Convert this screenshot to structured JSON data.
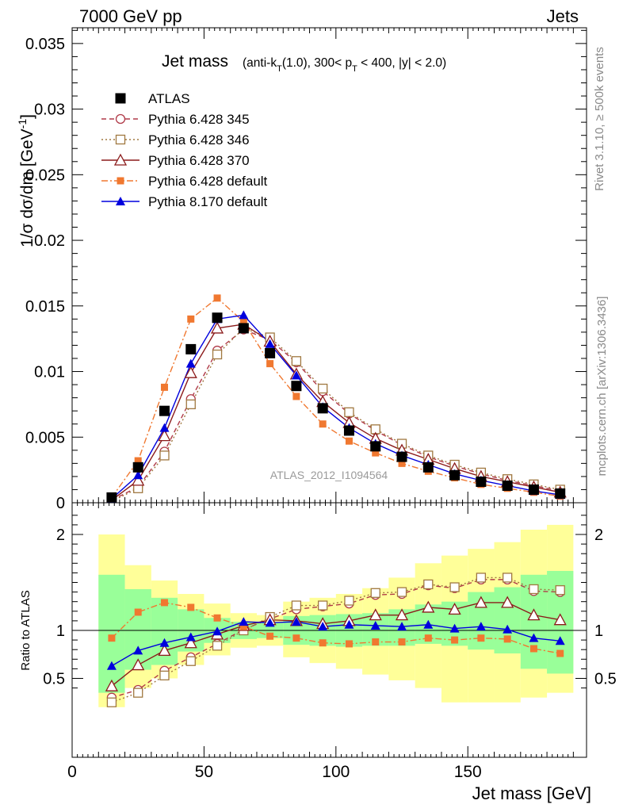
{
  "header": {
    "left": "7000 GeV pp",
    "right": "Jets"
  },
  "side_labels": {
    "rivet": "Rivet 3.1.10, ≥ 500k events",
    "mcplots": "mcplots.cern.ch [arXiv:1306.3436]"
  },
  "watermark": "ATLAS_2012_I1094564",
  "chart_data": {
    "type": "line",
    "title": "Jet mass",
    "title_detail": "(anti-k_T(1.0), 300< p_T < 400, |y| < 2.0)",
    "xlabel": "Jet mass [GeV]",
    "ylabel": "1/σ dσ/dm [GeV^-1]",
    "ratio_ylabel": "Ratio to ATLAS",
    "xlim": [
      0,
      195
    ],
    "ylim": [
      0,
      0.0362
    ],
    "ratio_ylim": [
      0.35,
      2.25
    ],
    "x_ticks": [
      "0",
      "50",
      "100",
      "150"
    ],
    "y_ticks": [
      "0",
      "0.005",
      "0.01",
      "0.015",
      "0.02",
      "0.025",
      "0.03",
      "0.035"
    ],
    "ratio_y_ticks": [
      "0.5",
      "1",
      "2"
    ],
    "legend_position": "top-left",
    "x": [
      15,
      25,
      35,
      45,
      55,
      65,
      75,
      85,
      95,
      105,
      115,
      125,
      135,
      145,
      155,
      165,
      175,
      185
    ],
    "bin_edges": [
      10,
      20,
      30,
      40,
      50,
      60,
      70,
      80,
      90,
      100,
      110,
      120,
      130,
      140,
      150,
      160,
      170,
      180,
      190
    ],
    "series": [
      {
        "name": "ATLAS",
        "color": "#000000",
        "marker": "filled-square",
        "values": [
          0.0004,
          0.0027,
          0.007,
          0.0117,
          0.0141,
          0.0133,
          0.0114,
          0.0089,
          0.0072,
          0.0055,
          0.0043,
          0.0035,
          0.0027,
          0.0021,
          0.0016,
          0.0013,
          0.001,
          0.0007
        ]
      },
      {
        "name": "Pythia 6.428 345",
        "color": "#b03a48",
        "marker": "open-circle",
        "dash": "6,4",
        "values": [
          0.0002,
          0.0012,
          0.0039,
          0.0079,
          0.0116,
          0.0132,
          0.0124,
          0.0107,
          0.0085,
          0.0068,
          0.0055,
          0.0044,
          0.0035,
          0.0028,
          0.0022,
          0.0017,
          0.0013,
          0.0009
        ]
      },
      {
        "name": "Pythia 6.428 346",
        "color": "#a07840",
        "marker": "open-square",
        "dash": "2,3",
        "values": [
          0.0001,
          0.0011,
          0.0036,
          0.0075,
          0.0113,
          0.0133,
          0.0126,
          0.0108,
          0.0087,
          0.0069,
          0.0056,
          0.0045,
          0.0036,
          0.0029,
          0.0023,
          0.0018,
          0.0014,
          0.001
        ]
      },
      {
        "name": "Pythia 6.428 370",
        "color": "#8b1a1a",
        "marker": "open-triangle",
        "dash": "",
        "values": [
          0.0002,
          0.0017,
          0.0051,
          0.0099,
          0.0133,
          0.0136,
          0.0123,
          0.0098,
          0.0077,
          0.0061,
          0.0049,
          0.004,
          0.0033,
          0.0026,
          0.002,
          0.0016,
          0.0012,
          0.0008
        ]
      },
      {
        "name": "Pythia 6.428 default",
        "color": "#f07830",
        "marker": "filled-square-small",
        "dash": "8,3,2,3",
        "values": [
          0.0004,
          0.0032,
          0.0088,
          0.014,
          0.0156,
          0.0138,
          0.0106,
          0.0081,
          0.006,
          0.0047,
          0.0038,
          0.003,
          0.0024,
          0.0019,
          0.0014,
          0.0011,
          0.0008,
          0.0005
        ]
      },
      {
        "name": "Pythia 8.170 default",
        "color": "#0000dd",
        "marker": "filled-triangle",
        "dash": "",
        "values": [
          0.0003,
          0.0021,
          0.0057,
          0.0106,
          0.014,
          0.0143,
          0.0121,
          0.0097,
          0.0073,
          0.0057,
          0.0045,
          0.0036,
          0.0029,
          0.0022,
          0.0017,
          0.0013,
          0.0009,
          0.0006
        ]
      }
    ],
    "ratio_series": [
      {
        "name": "Pythia 6.428 345",
        "values": [
          0.3,
          0.38,
          0.58,
          0.72,
          0.86,
          1.01,
          1.12,
          1.22,
          1.25,
          1.28,
          1.37,
          1.38,
          1.47,
          1.44,
          1.53,
          1.53,
          1.41,
          1.4
        ]
      },
      {
        "name": "Pythia 6.428 346",
        "values": [
          0.25,
          0.35,
          0.53,
          0.68,
          0.84,
          1.0,
          1.14,
          1.26,
          1.26,
          1.31,
          1.39,
          1.4,
          1.48,
          1.45,
          1.55,
          1.55,
          1.43,
          1.42
        ]
      },
      {
        "name": "Pythia 6.428 370",
        "values": [
          0.42,
          0.64,
          0.79,
          0.87,
          0.96,
          1.05,
          1.11,
          1.1,
          1.07,
          1.1,
          1.16,
          1.16,
          1.24,
          1.22,
          1.29,
          1.29,
          1.16,
          1.11
        ]
      },
      {
        "name": "Pythia 6.428 default",
        "values": [
          0.92,
          1.19,
          1.29,
          1.24,
          1.13,
          1.04,
          0.94,
          0.92,
          0.87,
          0.86,
          0.88,
          0.88,
          0.92,
          0.9,
          0.92,
          0.91,
          0.81,
          0.76
        ]
      },
      {
        "name": "Pythia 8.170 default",
        "values": [
          0.63,
          0.79,
          0.87,
          0.93,
          0.99,
          1.09,
          1.08,
          1.09,
          1.04,
          1.06,
          1.05,
          1.04,
          1.06,
          1.02,
          1.04,
          1.01,
          0.92,
          0.89
        ]
      }
    ],
    "uncertainty_bands": {
      "inner": {
        "color": "#99ff99",
        "low": [
          0.35,
          0.59,
          0.64,
          0.78,
          0.87,
          0.91,
          0.92,
          0.85,
          0.84,
          0.83,
          0.84,
          0.84,
          0.86,
          0.84,
          0.8,
          0.76,
          0.6,
          0.55
        ],
        "high": [
          1.58,
          1.43,
          1.34,
          1.22,
          1.13,
          1.09,
          1.08,
          1.15,
          1.16,
          1.17,
          1.18,
          1.22,
          1.27,
          1.3,
          1.4,
          1.45,
          1.58,
          1.62
        ]
      },
      "outer": {
        "color": "#ffff99",
        "low": [
          0.2,
          0.4,
          0.5,
          0.64,
          0.74,
          0.82,
          0.84,
          0.72,
          0.66,
          0.6,
          0.54,
          0.48,
          0.4,
          0.25,
          0.25,
          0.25,
          0.3,
          0.35
        ],
        "high": [
          2.0,
          1.68,
          1.52,
          1.38,
          1.28,
          1.18,
          1.16,
          1.3,
          1.34,
          1.38,
          1.44,
          1.55,
          1.7,
          1.78,
          1.85,
          1.92,
          2.05,
          2.1
        ]
      }
    }
  }
}
